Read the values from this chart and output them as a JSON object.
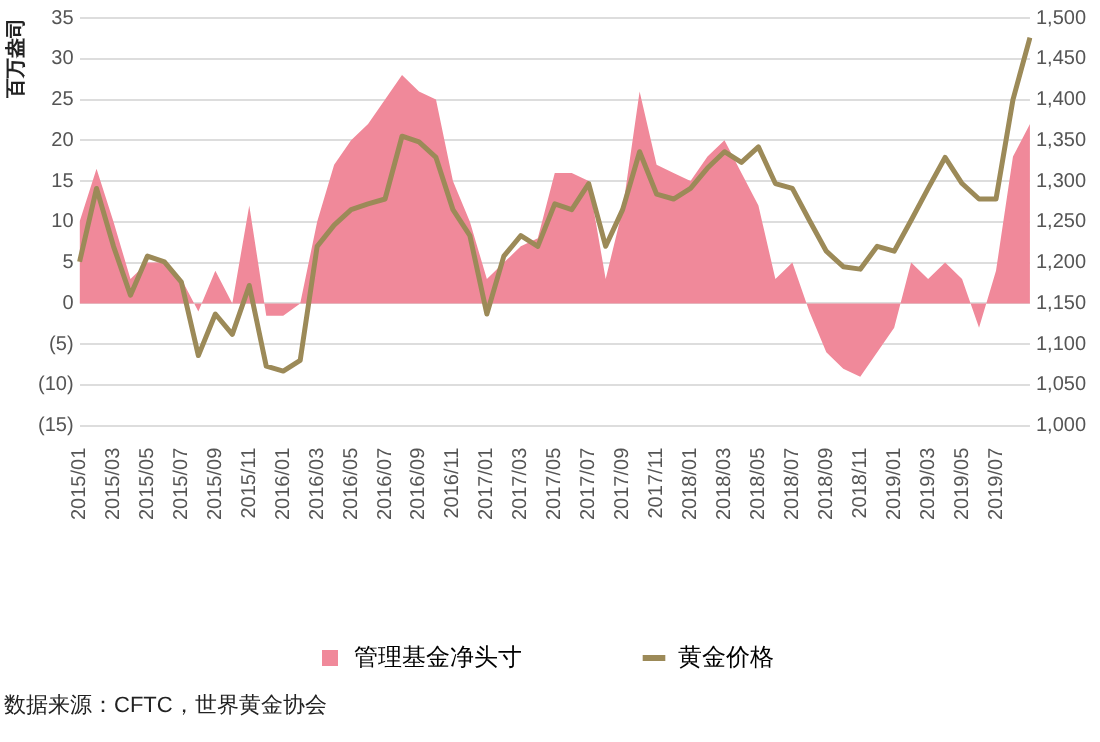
{
  "chart_data": {
    "type": "area",
    "ylabel": "百万盎司",
    "categories": [
      "2015/01",
      null,
      "2015/03",
      null,
      "2015/05",
      null,
      "2015/07",
      null,
      "2015/09",
      null,
      "2015/11",
      null,
      "2016/01",
      null,
      "2016/03",
      null,
      "2016/05",
      null,
      "2016/07",
      null,
      "2016/09",
      null,
      "2016/11",
      null,
      "2017/01",
      null,
      "2017/03",
      null,
      "2017/05",
      null,
      "2017/07",
      null,
      "2017/09",
      null,
      "2017/11",
      null,
      "2018/01",
      null,
      "2018/03",
      null,
      "2018/05",
      null,
      "2018/07",
      null,
      "2018/09",
      null,
      "2018/11",
      null,
      "2019/01",
      null,
      "2019/03",
      null,
      "2019/05",
      null,
      "2019/07",
      null,
      null
    ],
    "series": [
      {
        "name": "管理基金净头寸",
        "color": "#f0899a",
        "values": [
          10,
          16.5,
          10,
          3,
          5,
          5,
          3,
          -1,
          4,
          0,
          12,
          -1.5,
          -1.5,
          0,
          10,
          17,
          20,
          22,
          25,
          28,
          26,
          25,
          15,
          10,
          3,
          5,
          7,
          8,
          16,
          16,
          15,
          3,
          11.5,
          26,
          17,
          16,
          15,
          18,
          20,
          16,
          12,
          3,
          5,
          -1,
          -6,
          -8,
          -9,
          -6,
          -3,
          5,
          3,
          5,
          3,
          -3,
          4,
          18,
          22
        ]
      },
      {
        "name": "黄金价格",
        "type": "line",
        "axis": "y2",
        "color": "#9c8a58",
        "values": [
          1201,
          1291,
          1220,
          1160,
          1208,
          1201,
          1176,
          1086,
          1137,
          1112,
          1172,
          1073,
          1067,
          1080,
          1220,
          1246,
          1265,
          1272,
          1278,
          1355,
          1348,
          1329,
          1265,
          1233,
          1137,
          1208,
          1233,
          1220,
          1272,
          1265,
          1297,
          1220,
          1265,
          1336,
          1284,
          1278,
          1291,
          1316,
          1336,
          1323,
          1342,
          1297,
          1291,
          1252,
          1214,
          1195,
          1192,
          1220,
          1214,
          1252,
          1291,
          1329,
          1297,
          1278,
          1278,
          1400,
          1476
        ]
      }
    ],
    "ylim": [
      -15,
      35
    ],
    "yticks": [
      {
        "value": -15,
        "label": "(15)"
      },
      {
        "value": -10,
        "label": "(10)"
      },
      {
        "value": -5,
        "label": "(5)"
      },
      0,
      5,
      10,
      15,
      20,
      25,
      30,
      35
    ],
    "y2lim": [
      1000,
      1500
    ],
    "y2ticks": [
      {
        "value": 1000,
        "label": "1,000"
      },
      {
        "value": 1050,
        "label": "1,050"
      },
      {
        "value": 1100,
        "label": "1,100"
      },
      {
        "value": 1150,
        "label": "1,150"
      },
      {
        "value": 1200,
        "label": "1,200"
      },
      {
        "value": 1250,
        "label": "1,250"
      },
      {
        "value": 1300,
        "label": "1,300"
      },
      {
        "value": 1350,
        "label": "1,350"
      },
      {
        "value": 1400,
        "label": "1,400"
      },
      {
        "value": 1450,
        "label": "1,450"
      },
      {
        "value": 1500,
        "label": "1,500"
      }
    ],
    "grid": "y",
    "legend": "bottom",
    "annotations": [
      "数据来源：CFTC，世界黄金协会"
    ]
  }
}
